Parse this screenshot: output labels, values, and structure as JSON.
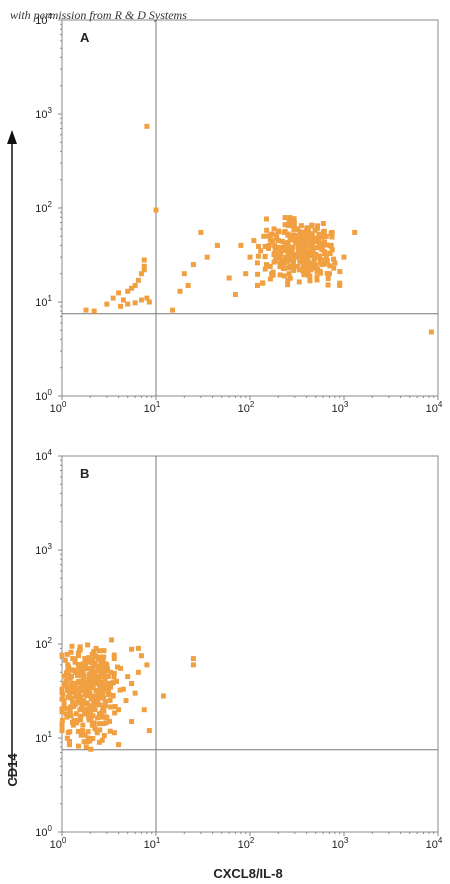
{
  "watermark": "with permission from R & D Systems",
  "colors": {
    "points": "#F0A040",
    "frame": "#8a8a8a",
    "gate": "#7a7a7a"
  },
  "chart_data": [
    {
      "type": "scatter",
      "panel": "A",
      "xscale": "log",
      "yscale": "log",
      "xlim": [
        1,
        10000
      ],
      "ylim": [
        1,
        10000
      ],
      "xticks": [
        "10^0",
        "10^1",
        "10^2",
        "10^3",
        "10^4"
      ],
      "yticks": [
        "10^0",
        "10^1",
        "10^2",
        "10^3",
        "10^4"
      ],
      "quadrant_gates": {
        "x": 10,
        "y": 7.5
      },
      "points": [
        [
          1.8,
          8.2
        ],
        [
          2.2,
          8.0
        ],
        [
          3,
          9.5
        ],
        [
          3.5,
          11
        ],
        [
          4,
          12.5
        ],
        [
          4.5,
          10.5
        ],
        [
          5,
          13
        ],
        [
          5.5,
          14
        ],
        [
          6,
          15
        ],
        [
          6.5,
          17
        ],
        [
          7,
          20
        ],
        [
          7.5,
          22
        ],
        [
          7.5,
          24
        ],
        [
          7.5,
          28
        ],
        [
          4.2,
          9
        ],
        [
          5,
          9.5
        ],
        [
          6,
          9.8
        ],
        [
          7,
          10.5
        ],
        [
          8,
          11
        ],
        [
          8.5,
          10
        ],
        [
          15,
          8.2
        ],
        [
          18,
          13
        ],
        [
          20,
          20
        ],
        [
          22,
          15
        ],
        [
          25,
          25
        ],
        [
          30,
          55
        ],
        [
          35,
          30
        ],
        [
          45,
          40
        ],
        [
          60,
          18
        ],
        [
          70,
          12
        ],
        [
          80,
          40
        ],
        [
          90,
          20
        ],
        [
          100,
          30
        ],
        [
          110,
          45
        ],
        [
          120,
          15
        ],
        [
          130,
          35
        ],
        [
          140,
          50
        ],
        [
          150,
          25
        ],
        [
          160,
          40
        ],
        [
          170,
          20
        ],
        [
          180,
          60
        ],
        [
          190,
          30
        ],
        [
          200,
          45
        ],
        [
          210,
          35
        ],
        [
          220,
          25
        ],
        [
          230,
          55
        ],
        [
          240,
          30
        ],
        [
          250,
          40
        ],
        [
          260,
          20
        ],
        [
          270,
          50
        ],
        [
          280,
          35
        ],
        [
          290,
          25
        ],
        [
          300,
          45
        ],
        [
          310,
          30
        ],
        [
          320,
          60
        ],
        [
          330,
          40
        ],
        [
          340,
          22
        ],
        [
          350,
          50
        ],
        [
          360,
          30
        ],
        [
          370,
          42
        ],
        [
          380,
          28
        ],
        [
          390,
          55
        ],
        [
          400,
          35
        ],
        [
          410,
          24
        ],
        [
          420,
          48
        ],
        [
          430,
          32
        ],
        [
          440,
          40
        ],
        [
          450,
          26
        ],
        [
          460,
          52
        ],
        [
          470,
          36
        ],
        [
          480,
          28
        ],
        [
          490,
          44
        ],
        [
          500,
          32
        ],
        [
          520,
          22
        ],
        [
          540,
          38
        ],
        [
          560,
          50
        ],
        [
          580,
          28
        ],
        [
          600,
          42
        ],
        [
          650,
          30
        ],
        [
          700,
          20
        ],
        [
          750,
          36
        ],
        [
          800,
          26
        ],
        [
          900,
          15
        ],
        [
          1000,
          30
        ],
        [
          1300,
          55
        ],
        [
          8500,
          4.8
        ],
        [
          10,
          95
        ],
        [
          8,
          740
        ]
      ]
    },
    {
      "type": "scatter",
      "panel": "B",
      "xscale": "log",
      "yscale": "log",
      "xlim": [
        1,
        10000
      ],
      "ylim": [
        1,
        10000
      ],
      "xticks": [
        "10^0",
        "10^1",
        "10^2",
        "10^3",
        "10^4"
      ],
      "yticks": [
        "10^0",
        "10^1",
        "10^2",
        "10^3",
        "10^4"
      ],
      "quadrant_gates": {
        "x": 10,
        "y": 7.5
      },
      "xlabel": "CXCL8/IL-8",
      "ylabel": "CD14",
      "points": [
        [
          1.0,
          12
        ],
        [
          1.05,
          25
        ],
        [
          1.1,
          40
        ],
        [
          1.1,
          18
        ],
        [
          1.15,
          60
        ],
        [
          1.2,
          30
        ],
        [
          1.2,
          9
        ],
        [
          1.25,
          45
        ],
        [
          1.3,
          22
        ],
        [
          1.3,
          70
        ],
        [
          1.35,
          35
        ],
        [
          1.4,
          15
        ],
        [
          1.4,
          50
        ],
        [
          1.45,
          28
        ],
        [
          1.5,
          80
        ],
        [
          1.5,
          40
        ],
        [
          1.55,
          20
        ],
        [
          1.6,
          60
        ],
        [
          1.6,
          32
        ],
        [
          1.65,
          12
        ],
        [
          1.7,
          45
        ],
        [
          1.7,
          25
        ],
        [
          1.75,
          70
        ],
        [
          1.8,
          38
        ],
        [
          1.8,
          18
        ],
        [
          1.85,
          55
        ],
        [
          1.9,
          30
        ],
        [
          1.9,
          10
        ],
        [
          1.95,
          48
        ],
        [
          2.0,
          22
        ],
        [
          2.0,
          65
        ],
        [
          2.05,
          35
        ],
        [
          2.1,
          14
        ],
        [
          2.1,
          50
        ],
        [
          2.15,
          28
        ],
        [
          2.2,
          75
        ],
        [
          2.2,
          40
        ],
        [
          2.25,
          20
        ],
        [
          2.3,
          58
        ],
        [
          2.3,
          32
        ],
        [
          2.35,
          12
        ],
        [
          2.4,
          45
        ],
        [
          2.4,
          26
        ],
        [
          2.45,
          68
        ],
        [
          2.5,
          38
        ],
        [
          2.5,
          18
        ],
        [
          2.6,
          55
        ],
        [
          2.7,
          30
        ],
        [
          2.8,
          85
        ],
        [
          2.8,
          45
        ],
        [
          2.9,
          22
        ],
        [
          3.0,
          60
        ],
        [
          3.0,
          35
        ],
        [
          3.2,
          15
        ],
        [
          3.3,
          50
        ],
        [
          3.5,
          28
        ],
        [
          3.6,
          70
        ],
        [
          3.8,
          40
        ],
        [
          4.0,
          20
        ],
        [
          4.2,
          55
        ],
        [
          4.5,
          33
        ],
        [
          4.8,
          25
        ],
        [
          5.0,
          45
        ],
        [
          5.5,
          88
        ],
        [
          5.5,
          38
        ],
        [
          6.0,
          30
        ],
        [
          6.5,
          50
        ],
        [
          6.5,
          90
        ],
        [
          7.0,
          75
        ],
        [
          7.5,
          20
        ],
        [
          8.0,
          60
        ],
        [
          12,
          28
        ],
        [
          25,
          60
        ],
        [
          25,
          70
        ],
        [
          8.5,
          12
        ],
        [
          1.2,
          8.5
        ],
        [
          1.5,
          8.2
        ],
        [
          2.5,
          9
        ],
        [
          4.0,
          8.5
        ],
        [
          5.5,
          15
        ]
      ]
    }
  ]
}
